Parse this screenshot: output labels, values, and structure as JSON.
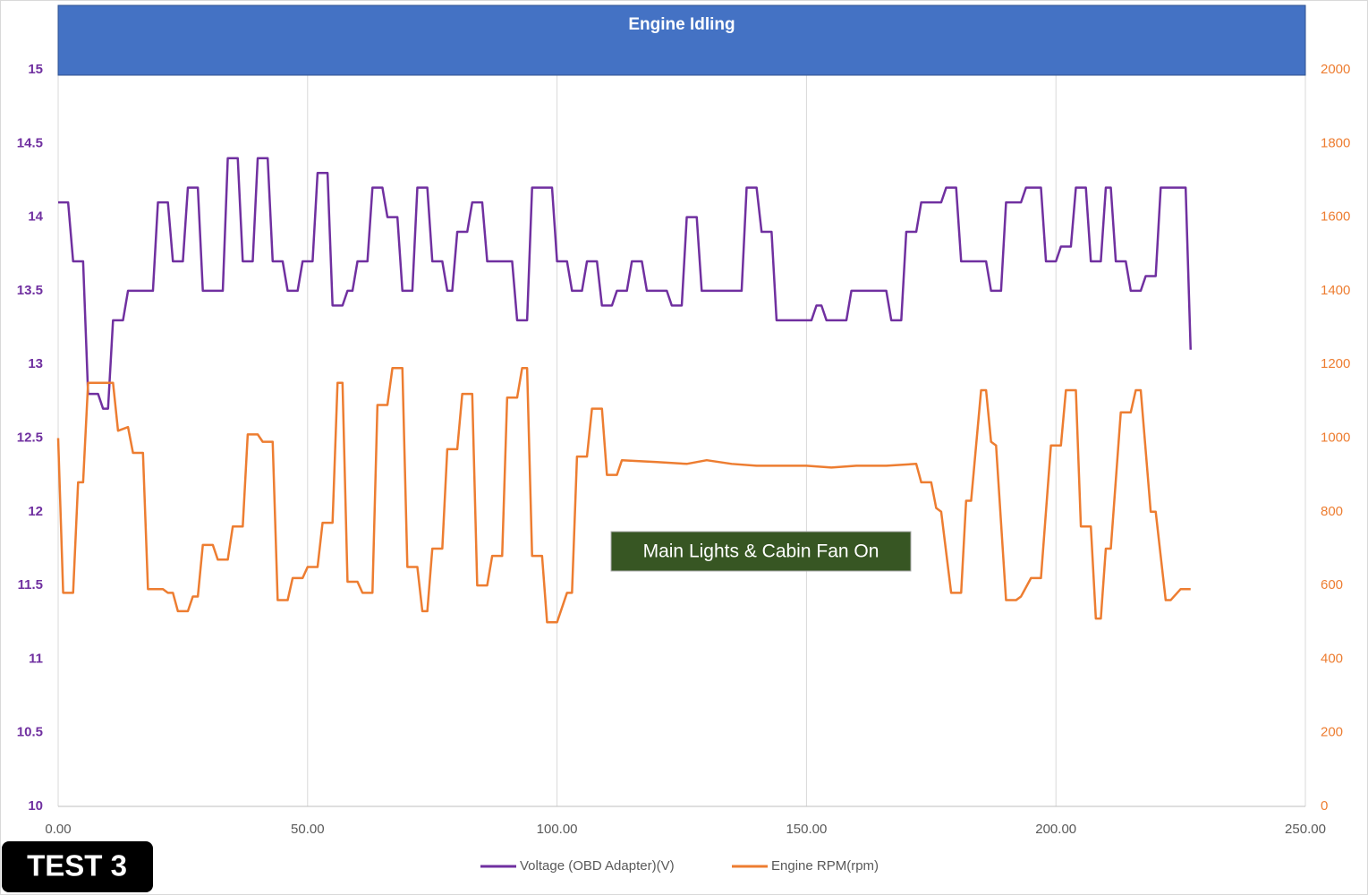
{
  "chart_data": {
    "type": "line",
    "title": "Engine Idling",
    "annotations": [
      "Main Lights & Cabin Fan On"
    ],
    "label": "TEST 3",
    "xlim": [
      0,
      250
    ],
    "xticks": [
      {
        "value": 0,
        "label": "0.00"
      },
      {
        "value": 50,
        "label": "50.00"
      },
      {
        "value": 100,
        "label": "100.00"
      },
      {
        "value": 150,
        "label": "150.00"
      },
      {
        "value": 200,
        "label": "200.00"
      },
      {
        "value": 250,
        "label": "250.00"
      }
    ],
    "ylim": [
      10,
      15
    ],
    "yticks": [
      10,
      10.5,
      11,
      11.5,
      12,
      12.5,
      13,
      13.5,
      14,
      14.5,
      15
    ],
    "y2lim": [
      0,
      2000
    ],
    "y2ticks": [
      0,
      200,
      400,
      600,
      800,
      1000,
      1200,
      1400,
      1600,
      1800,
      2000
    ],
    "grid": "x",
    "legend": "bottom",
    "series": [
      {
        "name": "Voltage (OBD Adapter)(V)",
        "color": "#7030a0",
        "axis": "y",
        "x": [
          0,
          2,
          3,
          5,
          6,
          8,
          9,
          10,
          11,
          13,
          14,
          19,
          20,
          22,
          23,
          25,
          26,
          28,
          29,
          33,
          34,
          36,
          37,
          39,
          40,
          42,
          43,
          45,
          46,
          48,
          49,
          51,
          52,
          54,
          55,
          57,
          58,
          59,
          60,
          62,
          63,
          65,
          66,
          68,
          69,
          71,
          72,
          74,
          75,
          77,
          78,
          79,
          80,
          82,
          83,
          85,
          86,
          91,
          92,
          94,
          95,
          99,
          100,
          102,
          103,
          105,
          106,
          108,
          109,
          111,
          112,
          114,
          115,
          117,
          118,
          122,
          123,
          125,
          126,
          128,
          129,
          137,
          138,
          140,
          141,
          143,
          144,
          151,
          152,
          153,
          154,
          158,
          159,
          166,
          167,
          169,
          170,
          172,
          173,
          177,
          178,
          180,
          181,
          186,
          187,
          189,
          190,
          193,
          194,
          197,
          198,
          200,
          201,
          203,
          204,
          206,
          207,
          209,
          210,
          211,
          212,
          214,
          215,
          217,
          218,
          220,
          221,
          226,
          227
        ],
        "values": [
          14.1,
          14.1,
          13.7,
          13.7,
          12.8,
          12.8,
          12.7,
          12.7,
          13.3,
          13.3,
          13.5,
          13.5,
          14.1,
          14.1,
          13.7,
          13.7,
          14.2,
          14.2,
          13.5,
          13.5,
          14.4,
          14.4,
          13.7,
          13.7,
          14.4,
          14.4,
          13.7,
          13.7,
          13.5,
          13.5,
          13.7,
          13.7,
          14.3,
          14.3,
          13.4,
          13.4,
          13.5,
          13.5,
          13.7,
          13.7,
          14.2,
          14.2,
          14.0,
          14.0,
          13.5,
          13.5,
          14.2,
          14.2,
          13.7,
          13.7,
          13.5,
          13.5,
          13.9,
          13.9,
          14.1,
          14.1,
          13.7,
          13.7,
          13.3,
          13.3,
          14.2,
          14.2,
          13.7,
          13.7,
          13.5,
          13.5,
          13.7,
          13.7,
          13.4,
          13.4,
          13.5,
          13.5,
          13.7,
          13.7,
          13.5,
          13.5,
          13.4,
          13.4,
          14.0,
          14.0,
          13.5,
          13.5,
          14.2,
          14.2,
          13.9,
          13.9,
          13.3,
          13.3,
          13.4,
          13.4,
          13.3,
          13.3,
          13.5,
          13.5,
          13.3,
          13.3,
          13.9,
          13.9,
          14.1,
          14.1,
          14.2,
          14.2,
          13.7,
          13.7,
          13.5,
          13.5,
          14.1,
          14.1,
          14.2,
          14.2,
          13.7,
          13.7,
          13.8,
          13.8,
          14.2,
          14.2,
          13.7,
          13.7,
          14.2,
          14.2,
          13.7,
          13.7,
          13.5,
          13.5,
          13.6,
          13.6,
          14.2,
          14.2,
          13.1
        ]
      },
      {
        "name": "Engine RPM(rpm)",
        "color": "#ed7d31",
        "axis": "y2",
        "x": [
          0,
          1,
          3,
          4,
          5,
          6,
          11,
          12,
          14,
          15,
          17,
          18,
          21,
          22,
          23,
          24,
          26,
          27,
          28,
          29,
          31,
          32,
          34,
          35,
          37,
          38,
          40,
          41,
          43,
          44,
          46,
          47,
          49,
          50,
          52,
          53,
          55,
          56,
          57,
          58,
          60,
          61,
          63,
          64,
          66,
          67,
          69,
          70,
          72,
          73,
          74,
          75,
          77,
          78,
          80,
          81,
          83,
          84,
          86,
          87,
          89,
          90,
          92,
          93,
          94,
          95,
          97,
          98,
          100,
          101,
          102,
          103,
          104,
          106,
          107,
          109,
          110,
          112,
          113,
          120,
          126,
          130,
          135,
          140,
          150,
          155,
          160,
          166,
          172,
          173,
          175,
          176,
          177,
          179,
          181,
          182,
          183,
          185,
          186,
          187,
          188,
          190,
          192,
          193,
          195,
          197,
          199,
          201,
          202,
          204,
          205,
          207,
          208,
          209,
          210,
          211,
          213,
          215,
          216,
          217,
          219,
          220,
          222,
          223,
          225,
          227
        ],
        "values": [
          1000,
          580,
          580,
          880,
          880,
          1150,
          1150,
          1020,
          1030,
          960,
          960,
          590,
          590,
          580,
          580,
          530,
          530,
          570,
          570,
          710,
          710,
          670,
          670,
          760,
          760,
          1010,
          1010,
          990,
          990,
          560,
          560,
          620,
          620,
          650,
          650,
          770,
          770,
          1150,
          1150,
          610,
          610,
          580,
          580,
          1090,
          1090,
          1190,
          1190,
          650,
          650,
          530,
          530,
          700,
          700,
          970,
          970,
          1120,
          1120,
          600,
          600,
          680,
          680,
          1110,
          1110,
          1190,
          1190,
          680,
          680,
          500,
          500,
          540,
          580,
          580,
          950,
          950,
          1080,
          1080,
          900,
          900,
          940,
          935,
          930,
          940,
          930,
          925,
          925,
          920,
          925,
          925,
          930,
          880,
          880,
          810,
          800,
          580,
          580,
          830,
          830,
          1130,
          1130,
          990,
          980,
          560,
          560,
          570,
          620,
          620,
          980,
          980,
          1130,
          1130,
          760,
          760,
          510,
          510,
          700,
          700,
          1070,
          1070,
          1130,
          1130,
          800,
          800,
          560,
          560,
          590,
          590
        ]
      }
    ]
  }
}
